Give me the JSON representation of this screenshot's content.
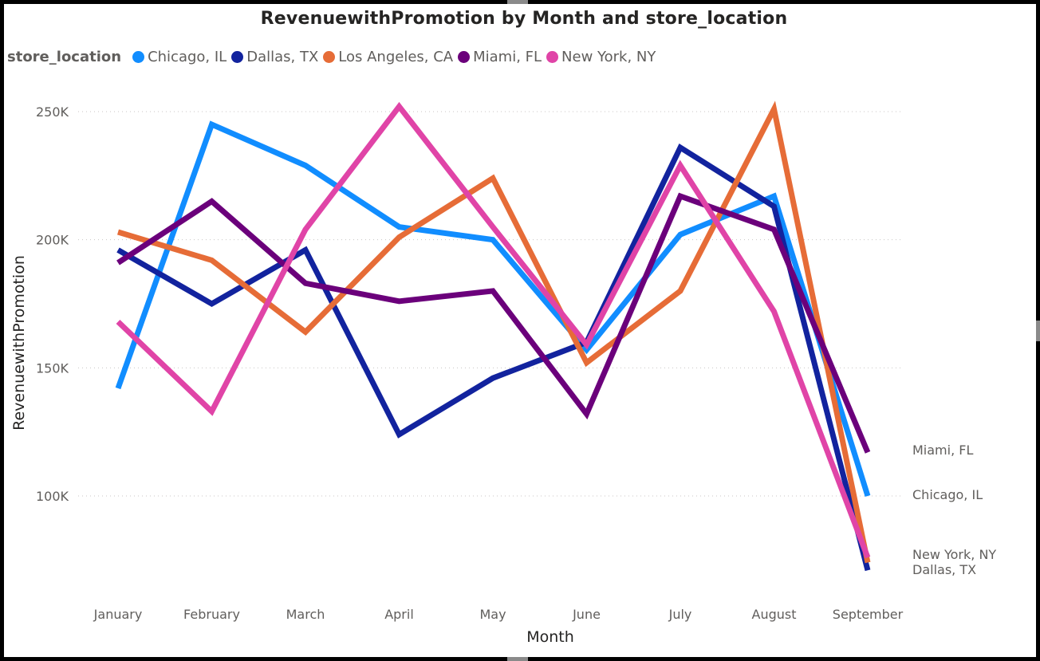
{
  "chart_data": {
    "type": "line",
    "title": "RevenuewithPromotion by Month and store_location",
    "xlabel": "Month",
    "ylabel": "RevenuewithPromotion",
    "legend_title": "store_location",
    "legend_position": "top-left",
    "grid": true,
    "ylim": [
      60000,
      260000
    ],
    "y_ticks": [
      100000,
      150000,
      200000,
      250000
    ],
    "y_tick_labels": [
      "100K",
      "150K",
      "200K",
      "250K"
    ],
    "categories": [
      "January",
      "February",
      "March",
      "April",
      "May",
      "June",
      "July",
      "August",
      "September"
    ],
    "series": [
      {
        "name": "Chicago, IL",
        "color": "#118DFF",
        "values": [
          142000,
          245000,
          229000,
          205000,
          200000,
          157000,
          202000,
          217000,
          100000
        ]
      },
      {
        "name": "Dallas, TX",
        "color": "#12239E",
        "values": [
          196000,
          175000,
          196000,
          124000,
          146000,
          160000,
          236000,
          213000,
          71000
        ]
      },
      {
        "name": "Los Angeles, CA",
        "color": "#E66C37",
        "values": [
          203000,
          192000,
          164000,
          201000,
          224000,
          152000,
          180000,
          251000,
          74000
        ]
      },
      {
        "name": "Miami, FL",
        "color": "#6B007B",
        "values": [
          191000,
          215000,
          183000,
          176000,
          180000,
          132000,
          217000,
          204000,
          117000
        ]
      },
      {
        "name": "New York, NY",
        "color": "#E044A7",
        "values": [
          168000,
          133000,
          204000,
          252000,
          205000,
          159000,
          229000,
          172000,
          76000
        ]
      }
    ],
    "end_labels": [
      {
        "series": "Miami, FL",
        "text": "Miami, FL"
      },
      {
        "series": "Chicago, IL",
        "text": "Chicago, IL"
      },
      {
        "series": "New York, NY",
        "text": "New York, NY"
      },
      {
        "series": "Dallas, TX",
        "text": "Dallas, TX"
      }
    ]
  }
}
